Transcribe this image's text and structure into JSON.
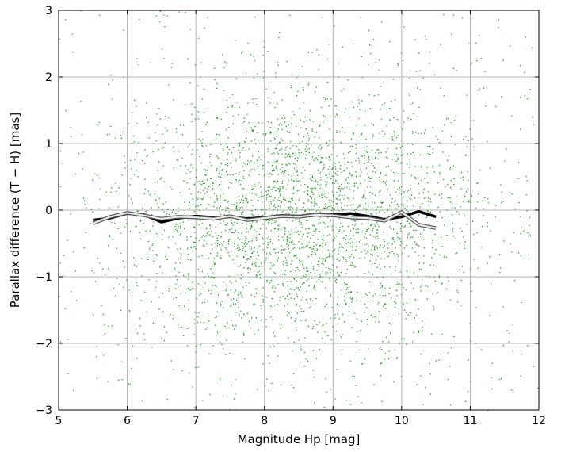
{
  "chart_data": {
    "type": "scatter",
    "xlabel": "Magnitude Hp [mag]",
    "ylabel": "Parallax difference (T − H) [mas]",
    "xlim": [
      5,
      12
    ],
    "ylim": [
      -3,
      3
    ],
    "x_ticks": [
      5,
      6,
      7,
      8,
      9,
      10,
      11,
      12
    ],
    "y_ticks": [
      -3,
      -2,
      -1,
      0,
      1,
      2,
      3
    ],
    "x_tick_labels": [
      "5",
      "6",
      "7",
      "8",
      "9",
      "10",
      "11",
      "12"
    ],
    "y_tick_labels": [
      "−3",
      "−2",
      "−1",
      "0",
      "1",
      "2",
      "3"
    ],
    "grid": true,
    "point_cloud": {
      "color": "#1aa31a",
      "center": [
        8.5,
        -0.1
      ],
      "spread": [
        1.3,
        0.95
      ],
      "density_note": "dense cloud of individual stars"
    },
    "series": [
      {
        "color": "#000000",
        "x": [
          5.5,
          5.75,
          6.0,
          6.25,
          6.5,
          6.75,
          7.0,
          7.25,
          7.5,
          7.75,
          8.0,
          8.25,
          8.5,
          8.75,
          9.0,
          9.25,
          9.5,
          9.75,
          10.0,
          10.25,
          10.5
        ],
        "y": [
          -0.15,
          -0.12,
          -0.05,
          -0.07,
          -0.18,
          -0.12,
          -0.09,
          -0.11,
          -0.1,
          -0.13,
          -0.11,
          -0.08,
          -0.09,
          -0.06,
          -0.07,
          -0.05,
          -0.09,
          -0.14,
          -0.1,
          -0.02,
          -0.1
        ]
      },
      {
        "color": "#e8e8e8",
        "x": [
          5.5,
          5.75,
          6.0,
          6.25,
          6.5,
          6.75,
          7.0,
          7.25,
          7.5,
          7.75,
          8.0,
          8.25,
          8.5,
          8.75,
          9.0,
          9.25,
          9.5,
          9.75,
          10.0,
          10.25,
          10.5
        ],
        "y": [
          -0.2,
          -0.1,
          -0.04,
          -0.08,
          -0.13,
          -0.1,
          -0.11,
          -0.13,
          -0.09,
          -0.15,
          -0.12,
          -0.09,
          -0.1,
          -0.07,
          -0.08,
          -0.11,
          -0.12,
          -0.16,
          -0.03,
          -0.22,
          -0.27
        ]
      }
    ]
  }
}
